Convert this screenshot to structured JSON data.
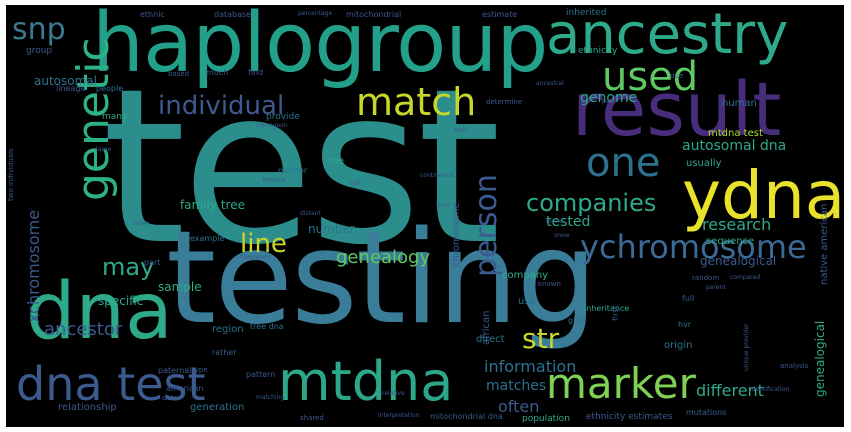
{
  "colors": {
    "background": "#000000",
    "frame": "#ffffff",
    "palette": [
      "#3b528b",
      "#2c728e",
      "#21918c",
      "#28ae80",
      "#5ec962",
      "#addc30",
      "#fde725",
      "#472d7b",
      "#440154"
    ]
  },
  "words": {
    "test": "test",
    "testing": "testing",
    "haplogroup": "haplogroup",
    "ancestry": "ancestry",
    "result": "result",
    "ydna": "ydna",
    "dna": "dna",
    "dna_test": "dna test",
    "mtdna": "mtdna",
    "marker": "marker",
    "genetic": "genetic",
    "match": "match",
    "used": "used",
    "one": "one",
    "individual": "individual",
    "ychromosome": "ychromosome",
    "snp": "snp",
    "person": "person",
    "companies": "companies",
    "line": "line",
    "str": "str",
    "may": "may",
    "genealogy": "genealogy",
    "research": "research",
    "xchromosome": "xchromosome",
    "ancestor": "ancestor",
    "information": "information",
    "matches": "matches",
    "different": "different",
    "often": "often",
    "autosomal_dna": "autosomal dna",
    "mtdna_test": "mtdna test",
    "genealogical": "genealogical",
    "tested": "tested",
    "genome": "genome",
    "autosomal": "autosomal",
    "specific": "specific",
    "family_tree": "family tree",
    "number": "number",
    "sample": "sample",
    "sequence": "sequence",
    "usually": "usually",
    "human": "human",
    "chromosome": "chromosome",
    "native_american": "native american",
    "genealogical_2": "genealogical",
    "company": "company",
    "african": "african",
    "region": "region",
    "generation": "generation",
    "relationship": "relationship",
    "use": "use",
    "direct": "direct",
    "origin": "origin",
    "mitochondrial": "mitochondrial",
    "database": "database",
    "percentage": "percentage",
    "ethnic": "ethnic",
    "estimate": "estimate",
    "inherited": "inherited",
    "ethnicity": "ethnicity",
    "group": "group",
    "lineage": "lineage",
    "people": "people",
    "many": "many",
    "provide": "provide",
    "example": "example",
    "tree": "tree",
    "mother": "mother",
    "female": "female",
    "give": "give",
    "inheritance": "inheritance",
    "known": "known",
    "american": "american",
    "paternal": "paternal",
    "pattern": "pattern",
    "rather": "rather",
    "tree_dna": "tree dna",
    "data": "data",
    "shared": "shared",
    "population": "population",
    "ethnicity_estimates": "ethnicity estimates",
    "mitochondrial_dna": "mitochondrial dna",
    "interpretation": "interpretation",
    "mutations": "mutations",
    "based": "based",
    "much": "much",
    "find": "find",
    "two_individuals": "two individuals",
    "mrsungeon": "msungeon",
    "type": "type",
    "part": "part",
    "cell": "cell",
    "full": "full",
    "first": "first",
    "hvr": "hvr",
    "half": "half",
    "due": "due",
    "ancestral": "ancestral",
    "pair": "pair",
    "random": "random",
    "analysis": "analysis",
    "matching": "matching",
    "large": "large",
    "unique_provider": "unique provider",
    "male": "male",
    "found": "found",
    "compared": "compared",
    "frequency": "frequency",
    "parent": "parent",
    "distant": "distant",
    "continental": "continental",
    "snow": "snow",
    "result_2": "result",
    "level": "level",
    "determine": "determine",
    "identification": "identification",
    "relative": "relative"
  }
}
